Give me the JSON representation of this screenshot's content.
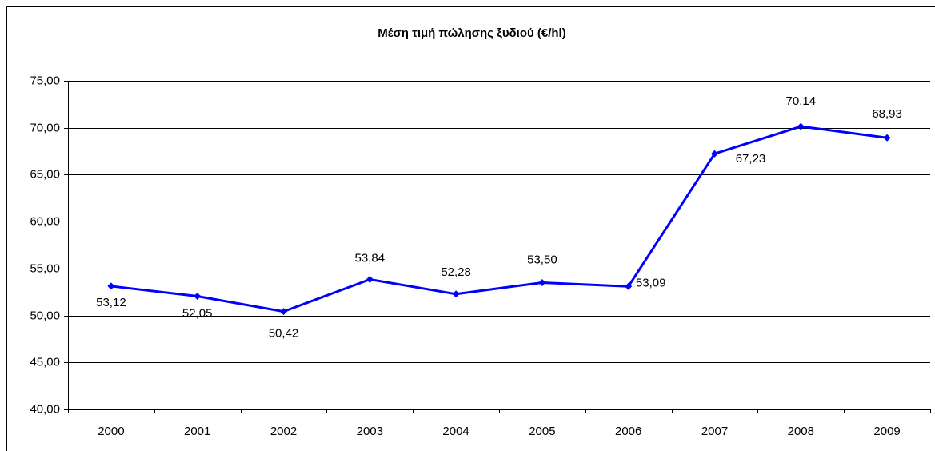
{
  "chart_data": {
    "type": "line",
    "title": "Μέση τιμή πώλησης ξυδιού (€/hl)",
    "categories": [
      "2000",
      "2001",
      "2002",
      "2003",
      "2004",
      "2005",
      "2006",
      "2007",
      "2008",
      "2009"
    ],
    "series": [
      {
        "name": "Μέση τιμή πώλησης ξυδιού (€/hl)",
        "color": "#0000ff",
        "values": [
          53.12,
          52.05,
          50.42,
          53.84,
          52.28,
          53.5,
          53.09,
          67.23,
          70.14,
          68.93
        ],
        "value_labels": [
          "53,12",
          "52,05",
          "50,42",
          "53,84",
          "52,28",
          "53,50",
          "53,09",
          "67,23",
          "70,14",
          "68,93"
        ]
      }
    ],
    "ylim": [
      40,
      75
    ],
    "yticks": [
      {
        "value": 40,
        "label": "40,00"
      },
      {
        "value": 45,
        "label": "45,00"
      },
      {
        "value": 50,
        "label": "50,00"
      },
      {
        "value": 55,
        "label": "55,00"
      },
      {
        "value": 60,
        "label": "60,00"
      },
      {
        "value": 65,
        "label": "65,00"
      },
      {
        "value": 70,
        "label": "70,00"
      },
      {
        "value": 75,
        "label": "75,00"
      }
    ],
    "grid": true
  }
}
